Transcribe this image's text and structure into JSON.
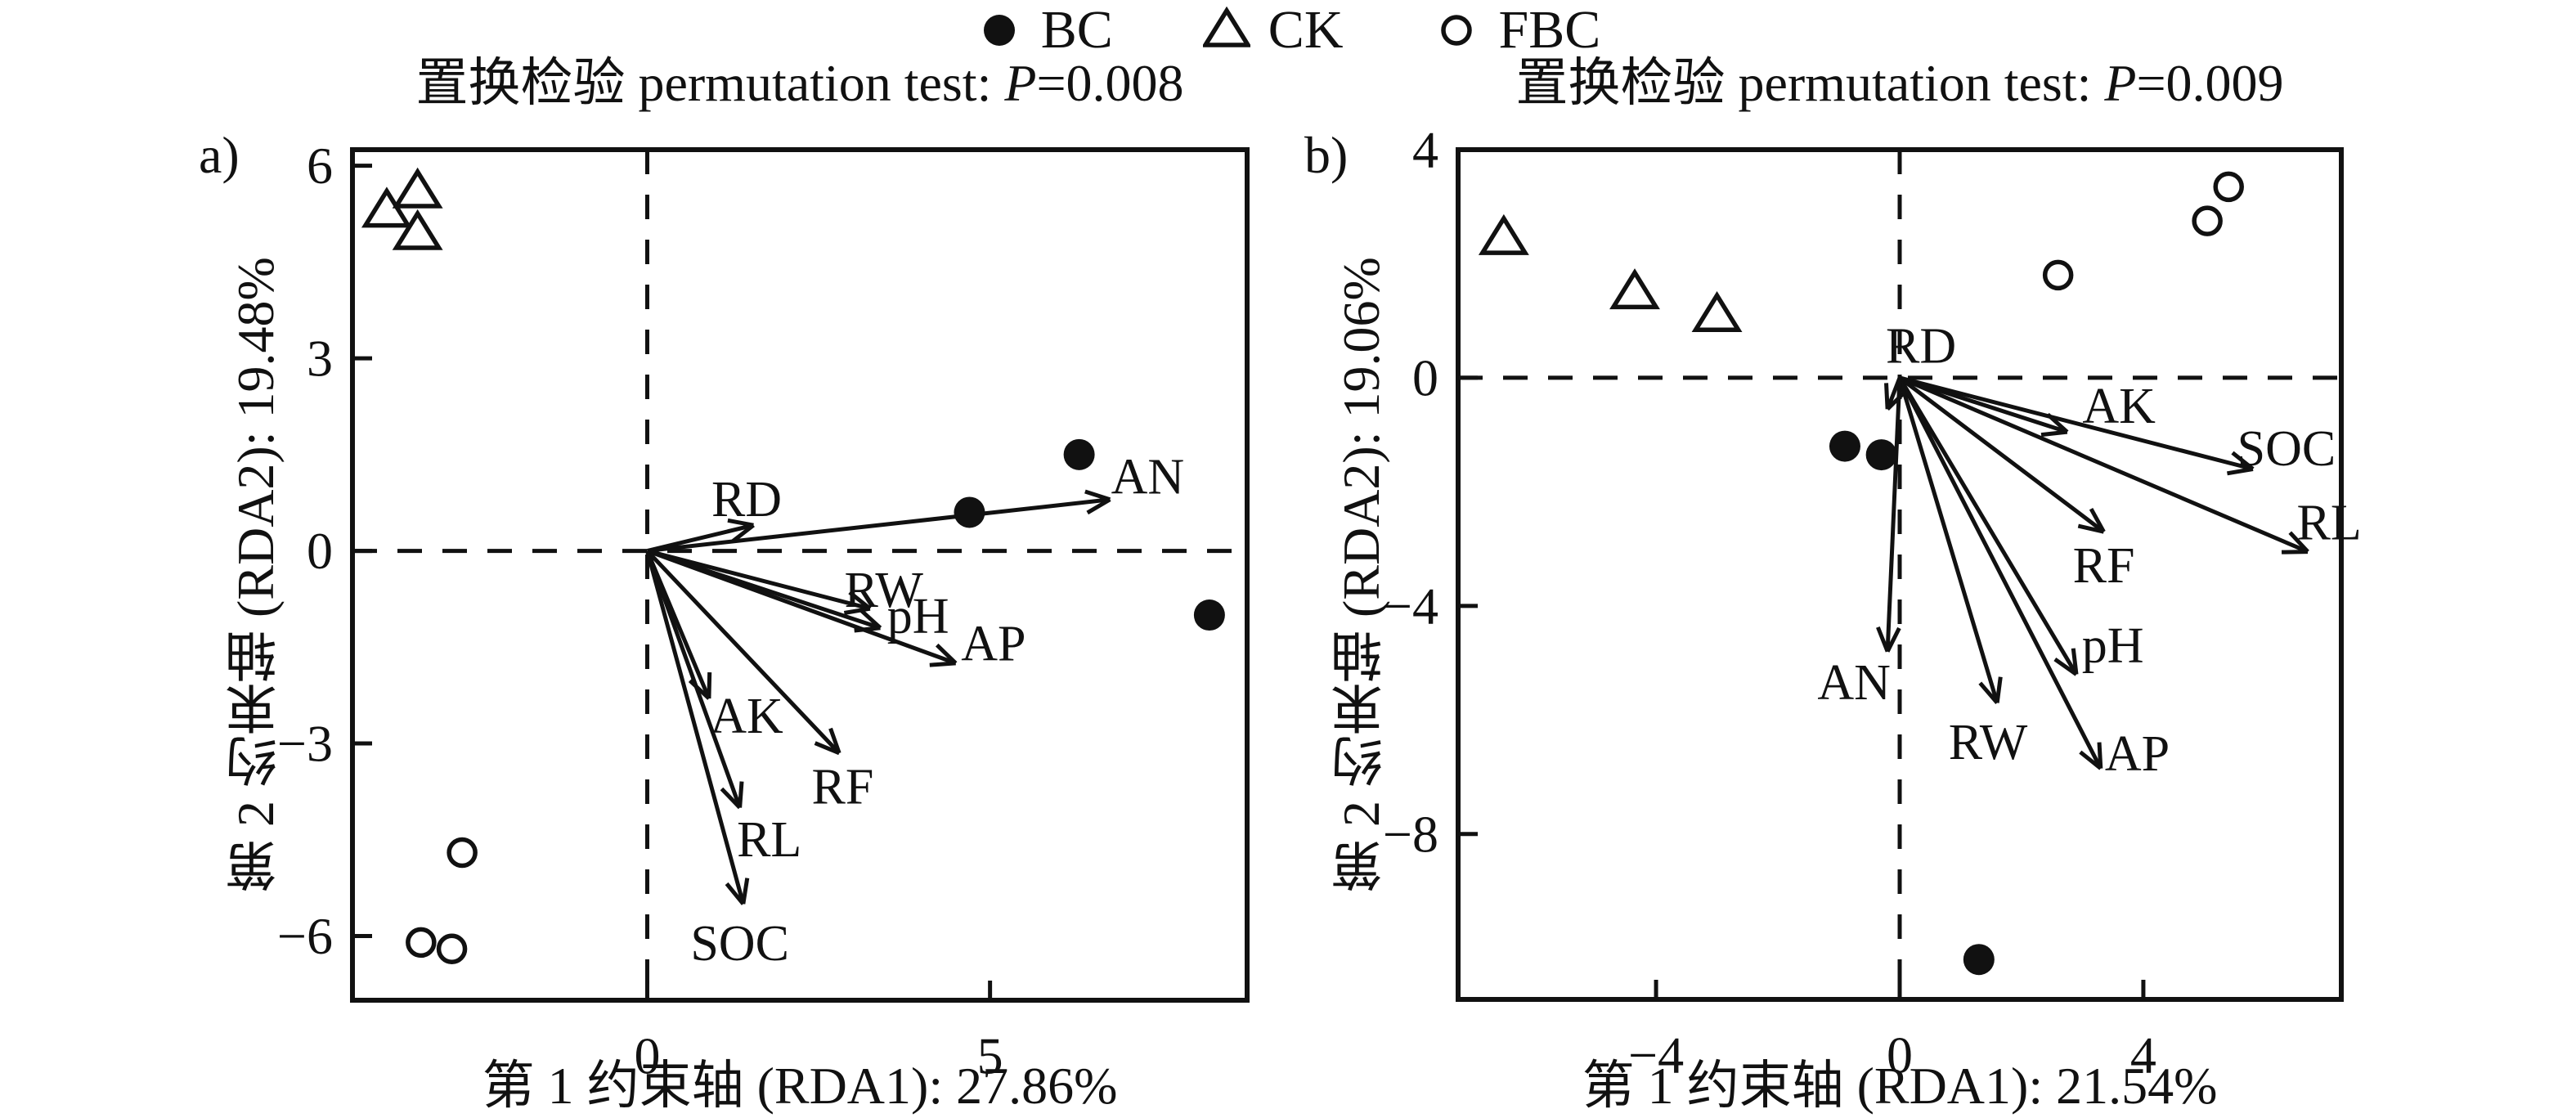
{
  "figure": {
    "background": "#ffffff",
    "ink_color": "#111111"
  },
  "legend": {
    "position": "top-center",
    "items": [
      {
        "label": "BC",
        "marker": "filled-circle"
      },
      {
        "label": "CK",
        "marker": "open-triangle"
      },
      {
        "label": "FBC",
        "marker": "open-circle"
      }
    ]
  },
  "chart_data": [
    {
      "type": "scatter",
      "subtype": "rda-biplot",
      "panel_label": "a)",
      "title_prefix": "置换检验 permutation test: ",
      "title_p": "P",
      "title_suffix": "=0.008",
      "xlabel": "第 1 约束轴 (RDA1): 27.86%",
      "ylabel": "第 2 约束轴 (RDA2): 19.48%",
      "xlim": [
        -4.3,
        8.75
      ],
      "ylim": [
        -7.0,
        6.25
      ],
      "xticks": [
        0,
        5
      ],
      "yticks": [
        6,
        3,
        0,
        -3,
        -6
      ],
      "zero_reference_lines": "dashed",
      "grid": false,
      "series": [
        {
          "name": "BC",
          "marker": "filled-circle",
          "points": [
            [
              4.7,
              0.6
            ],
            [
              6.3,
              1.5
            ],
            [
              8.2,
              -1.0
            ]
          ]
        },
        {
          "name": "CK",
          "marker": "open-triangle",
          "points": [
            [
              -3.8,
              5.3
            ],
            [
              -3.35,
              5.6
            ],
            [
              -3.35,
              4.95
            ]
          ]
        },
        {
          "name": "FBC",
          "marker": "open-circle",
          "points": [
            [
              -2.7,
              -4.7
            ],
            [
              -3.3,
              -6.1
            ],
            [
              -2.85,
              -6.2
            ]
          ]
        }
      ],
      "arrows": [
        {
          "name": "RD",
          "x": 1.55,
          "y": 0.4,
          "label_x": 1.45,
          "label_y": 0.8
        },
        {
          "name": "AN",
          "x": 6.75,
          "y": 0.8,
          "label_x": 7.3,
          "label_y": 1.15
        },
        {
          "name": "RW",
          "x": 3.25,
          "y": -0.9,
          "label_x": 3.45,
          "label_y": -0.62
        },
        {
          "name": "pH",
          "x": 3.4,
          "y": -1.2,
          "label_x": 3.95,
          "label_y": -1.02
        },
        {
          "name": "AP",
          "x": 4.5,
          "y": -1.75,
          "label_x": 5.05,
          "label_y": -1.45
        },
        {
          "name": "AK",
          "x": 0.9,
          "y": -2.3,
          "label_x": 1.45,
          "label_y": -2.58
        },
        {
          "name": "RF",
          "x": 2.8,
          "y": -3.15,
          "label_x": 2.85,
          "label_y": -3.68
        },
        {
          "name": "RL",
          "x": 1.35,
          "y": -4.0,
          "label_x": 1.78,
          "label_y": -4.5
        },
        {
          "name": "SOC",
          "x": 1.4,
          "y": -5.5,
          "label_x": 1.35,
          "label_y": -6.12
        }
      ]
    },
    {
      "type": "scatter",
      "subtype": "rda-biplot",
      "panel_label": "b)",
      "title_prefix": "置换检验 permutation test: ",
      "title_p": "P",
      "title_suffix": "=0.009",
      "xlabel": "第 1 约束轴 (RDA1): 21.54%",
      "ylabel": "第 2 约束轴 (RDA2): 19.06%",
      "xlim": [
        -7.25,
        7.25
      ],
      "ylim": [
        -10.9,
        4.0
      ],
      "xticks": [
        -4,
        0,
        4
      ],
      "yticks": [
        4,
        0,
        -4,
        -8
      ],
      "zero_reference_lines": "dashed",
      "grid": false,
      "series": [
        {
          "name": "BC",
          "marker": "filled-circle",
          "points": [
            [
              -0.9,
              -1.2
            ],
            [
              -0.3,
              -1.35
            ],
            [
              1.3,
              -10.2
            ]
          ]
        },
        {
          "name": "CK",
          "marker": "open-triangle",
          "points": [
            [
              -6.5,
              2.45
            ],
            [
              -4.35,
              1.5
            ],
            [
              -3.0,
              1.1
            ]
          ]
        },
        {
          "name": "FBC",
          "marker": "open-circle",
          "points": [
            [
              5.4,
              3.35
            ],
            [
              5.05,
              2.75
            ],
            [
              2.6,
              1.8
            ]
          ]
        }
      ],
      "arrows": [
        {
          "name": "RD",
          "x": -0.2,
          "y": -0.55,
          "label_x": 0.35,
          "label_y": 0.55
        },
        {
          "name": "AK",
          "x": 2.75,
          "y": -0.95,
          "label_x": 3.6,
          "label_y": -0.5
        },
        {
          "name": "SOC",
          "x": 5.8,
          "y": -1.6,
          "label_x": 6.35,
          "label_y": -1.25
        },
        {
          "name": "RL",
          "x": 6.7,
          "y": -3.05,
          "label_x": 7.05,
          "label_y": -2.55
        },
        {
          "name": "RF",
          "x": 3.35,
          "y": -2.7,
          "label_x": 3.35,
          "label_y": -3.3
        },
        {
          "name": "pH",
          "x": 2.9,
          "y": -5.2,
          "label_x": 3.5,
          "label_y": -4.7
        },
        {
          "name": "AP",
          "x": 3.3,
          "y": -6.85,
          "label_x": 3.9,
          "label_y": -6.6
        },
        {
          "name": "RW",
          "x": 1.6,
          "y": -5.7,
          "label_x": 1.45,
          "label_y": -6.4
        },
        {
          "name": "AN",
          "x": -0.2,
          "y": -4.8,
          "label_x": -0.75,
          "label_y": -5.35
        }
      ]
    }
  ]
}
